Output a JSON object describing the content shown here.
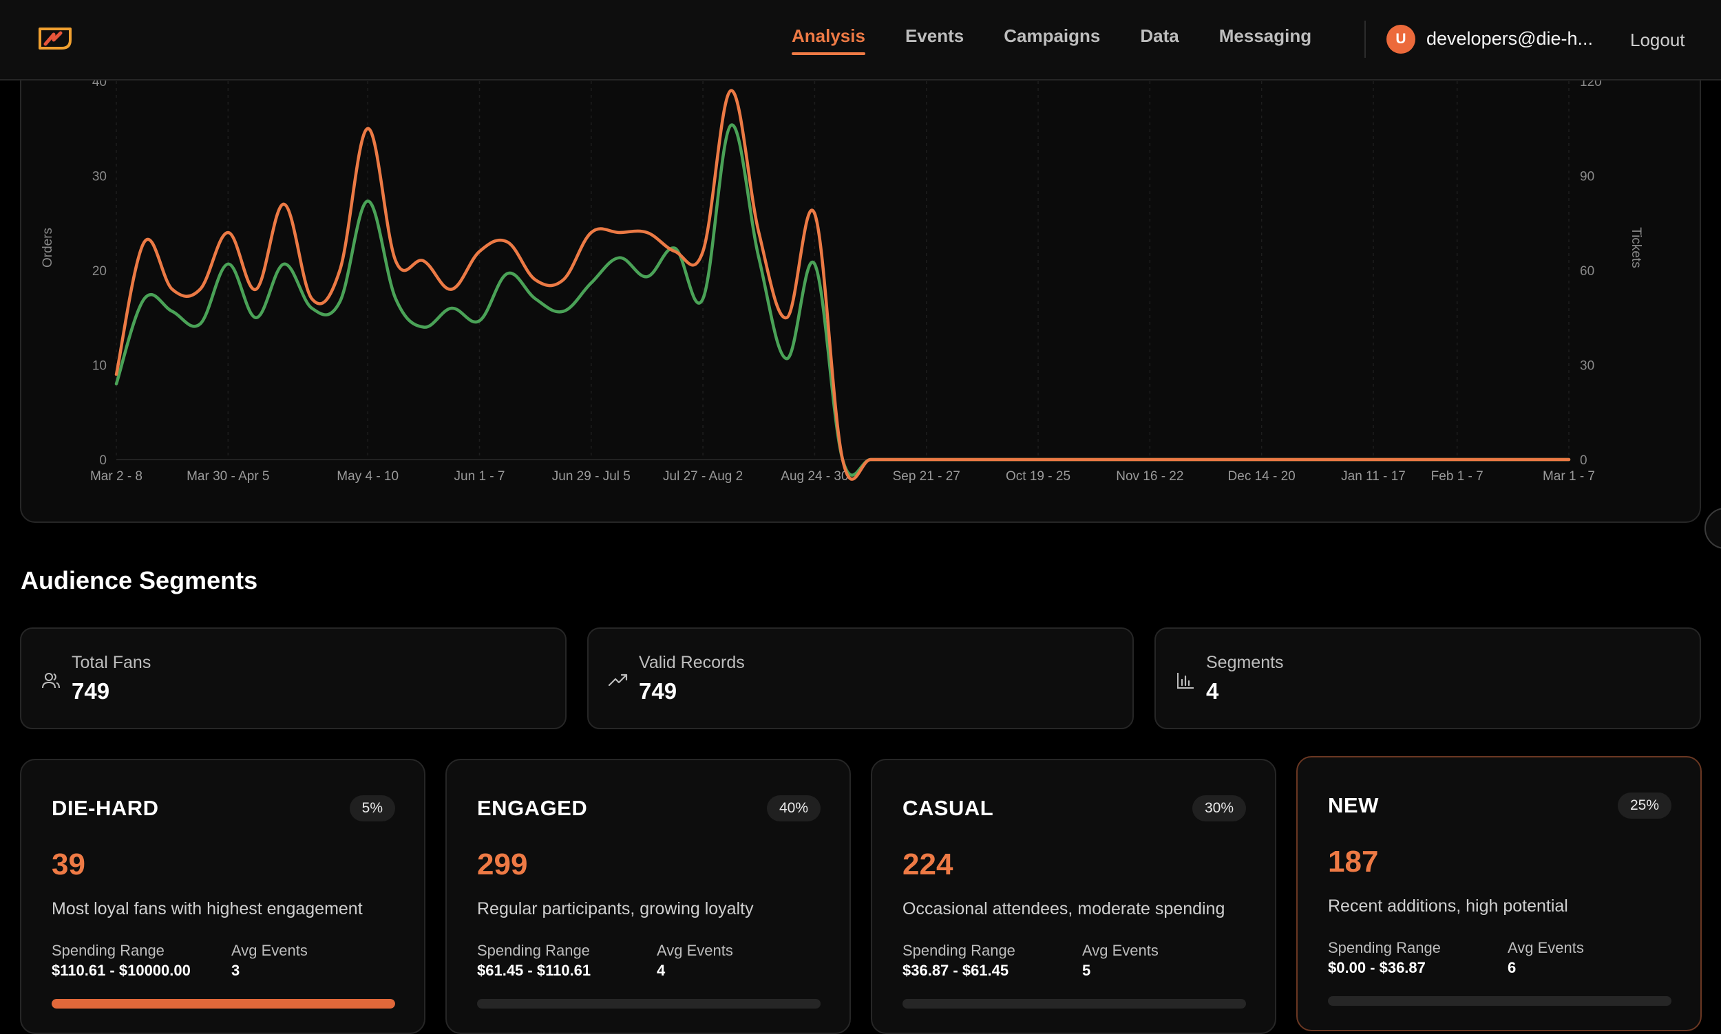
{
  "nav": {
    "items": [
      {
        "label": "Analysis",
        "active": true
      },
      {
        "label": "Events",
        "active": false
      },
      {
        "label": "Campaigns",
        "active": false
      },
      {
        "label": "Data",
        "active": false
      },
      {
        "label": "Messaging",
        "active": false
      }
    ],
    "user_initial": "U",
    "user_email": "developers@die-h...",
    "logout_label": "Logout"
  },
  "colors": {
    "accent": "#ee7a45",
    "orders_line": "#ec7a45",
    "tickets_line": "#4aa257"
  },
  "chart_data": {
    "type": "line",
    "ylabel_left": "Orders",
    "ylabel_right": "Tickets",
    "ylim_left": [
      0,
      40
    ],
    "ylim_right": [
      0,
      120
    ],
    "yticks_left": [
      "0",
      "10",
      "20",
      "30",
      "40"
    ],
    "yticks_right": [
      "0",
      "30",
      "60",
      "90",
      "120"
    ],
    "xtick_labels": [
      "Mar 2 - 8",
      "Mar 30 - Apr 5",
      "May 4 - 10",
      "Jun 1 - 7",
      "Jun 29 - Jul 5",
      "Jul 27 - Aug 2",
      "Aug 24 - 30",
      "Sep 21 - 27",
      "Oct 19 - 25",
      "Nov 16 - 22",
      "Dec 14 - 20",
      "Jan 11 - 17",
      "Feb 1 - 7",
      "Mar 1 - 7"
    ],
    "xtick_week_index": [
      0,
      4,
      9,
      13,
      17,
      21,
      25,
      29,
      33,
      37,
      41,
      45,
      48,
      52
    ],
    "weeks": 53,
    "grid": true,
    "series": [
      {
        "name": "Orders",
        "axis": "left",
        "values": [
          9,
          23,
          18,
          18,
          24,
          18,
          27,
          17,
          20,
          35,
          21,
          21,
          18,
          22,
          23,
          19,
          19,
          24,
          24,
          24,
          22,
          22,
          39,
          24,
          15,
          26,
          0,
          0,
          0,
          0,
          0,
          0,
          0,
          0,
          0,
          0,
          0,
          0,
          0,
          0,
          0,
          0,
          0,
          0,
          0,
          0,
          0,
          0,
          0,
          0,
          0,
          0,
          0
        ]
      },
      {
        "name": "Tickets",
        "axis": "right",
        "values": [
          24,
          51,
          47,
          43,
          62,
          45,
          62,
          48,
          50,
          82,
          51,
          42,
          48,
          44,
          59,
          51,
          47,
          56,
          64,
          58,
          67,
          51,
          106,
          64,
          32,
          62,
          0,
          0,
          0,
          0,
          0,
          0,
          0,
          0,
          0,
          0,
          0,
          0,
          0,
          0,
          0,
          0,
          0,
          0,
          0,
          0,
          0,
          0,
          0,
          0,
          0,
          0,
          0
        ]
      }
    ]
  },
  "segments_section": {
    "title": "Audience Segments",
    "stats": [
      {
        "label": "Total Fans",
        "value": "749",
        "icon": "users-icon"
      },
      {
        "label": "Valid Records",
        "value": "749",
        "icon": "trending-up-icon"
      },
      {
        "label": "Segments",
        "value": "4",
        "icon": "bar-chart-icon"
      }
    ],
    "spending_label": "Spending Range",
    "avg_events_label": "Avg Events",
    "cards": [
      {
        "name": "DIE-HARD",
        "percent": "5%",
        "count": "39",
        "description": "Most loyal fans with highest engagement",
        "spending_range": "$110.61 - $10000.00",
        "avg_events": "3",
        "bar_fill": 1.0
      },
      {
        "name": "ENGAGED",
        "percent": "40%",
        "count": "299",
        "description": "Regular participants, growing loyalty",
        "spending_range": "$61.45 - $110.61",
        "avg_events": "4",
        "bar_fill": 0.0
      },
      {
        "name": "CASUAL",
        "percent": "30%",
        "count": "224",
        "description": "Occasional attendees, moderate spending",
        "spending_range": "$36.87 - $61.45",
        "avg_events": "5",
        "bar_fill": 0.0
      },
      {
        "name": "NEW",
        "percent": "25%",
        "count": "187",
        "description": "Recent additions, high potential",
        "spending_range": "$0.00 - $36.87",
        "avg_events": "6",
        "bar_fill": 0.0
      }
    ]
  }
}
